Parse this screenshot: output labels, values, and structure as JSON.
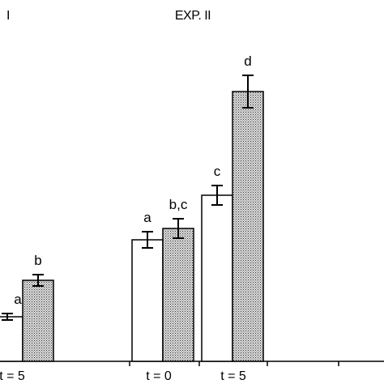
{
  "chart_data": {
    "type": "bar",
    "panels": [
      {
        "title": "I",
        "groups": [
          {
            "category": "t = 5",
            "bars": [
              {
                "fill": "white",
                "value": 0.55,
                "error": 0.04,
                "label": "a"
              },
              {
                "fill": "dotted",
                "value": 1.0,
                "error": 0.07,
                "label": "b"
              }
            ]
          }
        ]
      },
      {
        "title": "EXP. II",
        "groups": [
          {
            "category": "t = 0",
            "bars": [
              {
                "fill": "white",
                "value": 1.5,
                "error": 0.1,
                "label": "a"
              },
              {
                "fill": "dotted",
                "value": 1.64,
                "error": 0.12,
                "label": "b,c"
              }
            ]
          },
          {
            "category": "t = 5",
            "bars": [
              {
                "fill": "white",
                "value": 2.05,
                "error": 0.12,
                "label": "c"
              },
              {
                "fill": "dotted",
                "value": 3.33,
                "error": 0.2,
                "label": "d"
              }
            ]
          }
        ]
      }
    ],
    "xlabel": "",
    "ylabel": "",
    "ylim": [
      0,
      4
    ],
    "grid": false,
    "legend": "none"
  },
  "colors": {
    "dotted_fill": "#c8c8c8",
    "outline": "#000000",
    "background": "#ffffff"
  }
}
